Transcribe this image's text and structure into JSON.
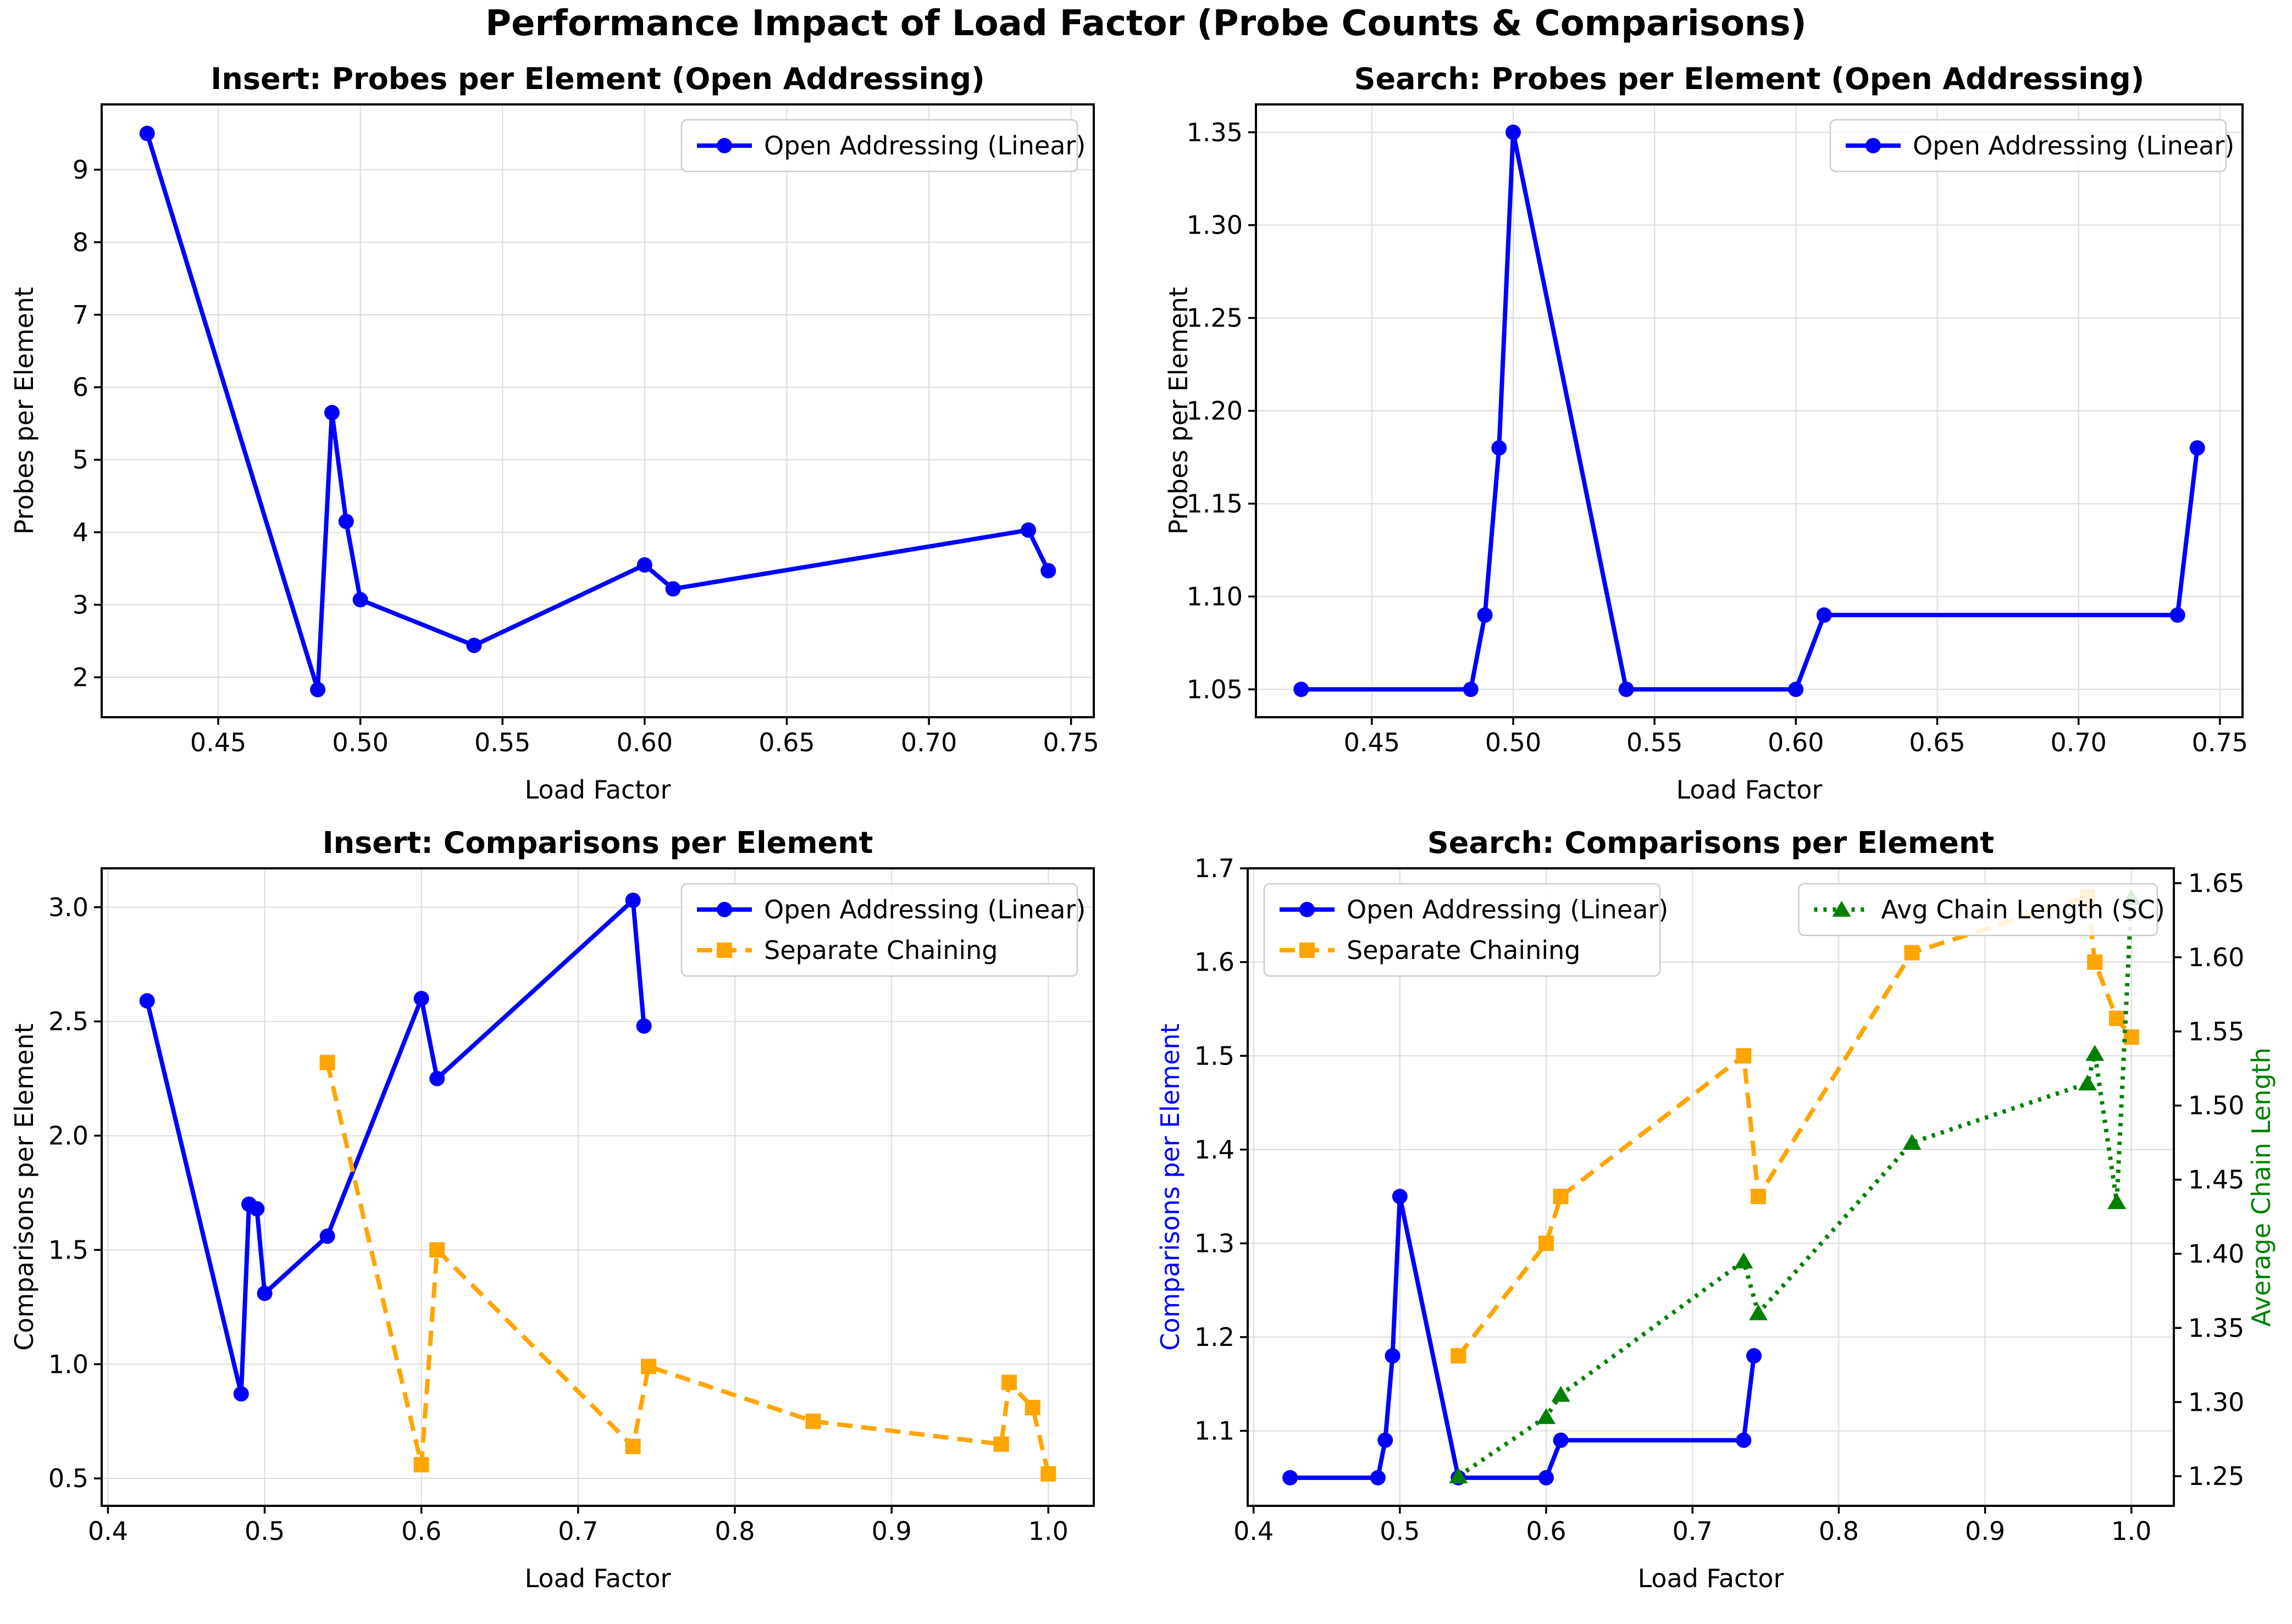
{
  "figure": {
    "title": "Performance Impact of Load Factor (Probe Counts & Comparisons)"
  },
  "colors": {
    "open_addressing": "#0000ff",
    "separate_chaining": "#ffa500",
    "avg_chain_length": "#008000",
    "grid": "#dcdcdc",
    "axis": "#000000",
    "legend_border": "#cccccc"
  },
  "chart_data": [
    {
      "type": "line",
      "title": "Insert: Probes per Element (Open Addressing)",
      "xlabel": "Load Factor",
      "ylabel": "Probes per Element",
      "ylabel_color": "#000000",
      "xlim": [
        0.409,
        0.758
      ],
      "ylim": [
        1.45,
        9.9
      ],
      "xticks": {
        "vals": [
          0.45,
          0.5,
          0.55,
          0.6,
          0.65,
          0.7,
          0.75
        ],
        "labels": [
          "0.45",
          "0.50",
          "0.55",
          "0.60",
          "0.65",
          "0.70",
          "0.75"
        ]
      },
      "yticks": {
        "vals": [
          2,
          3,
          4,
          5,
          6,
          7,
          8,
          9
        ],
        "labels": [
          "2",
          "3",
          "4",
          "5",
          "6",
          "7",
          "8",
          "9"
        ]
      },
      "grid": true,
      "series": [
        {
          "name": "Open Addressing (Linear)",
          "color": "#0000ff",
          "marker": "circle",
          "line": "solid",
          "axis": "y",
          "x": [
            0.425,
            0.485,
            0.49,
            0.495,
            0.5,
            0.54,
            0.6,
            0.61,
            0.735,
            0.742
          ],
          "y": [
            9.5,
            1.83,
            5.65,
            4.15,
            3.07,
            2.44,
            3.55,
            3.22,
            4.03,
            3.47
          ]
        }
      ],
      "legends": [
        {
          "loc": "upper right",
          "series": [
            0
          ]
        }
      ]
    },
    {
      "type": "line",
      "title": "Search: Probes per Element (Open Addressing)",
      "xlabel": "Load Factor",
      "ylabel": "Probes per Element",
      "ylabel_color": "#000000",
      "xlim": [
        0.409,
        0.758
      ],
      "ylim": [
        1.035,
        1.365
      ],
      "xticks": {
        "vals": [
          0.45,
          0.5,
          0.55,
          0.6,
          0.65,
          0.7,
          0.75
        ],
        "labels": [
          "0.45",
          "0.50",
          "0.55",
          "0.60",
          "0.65",
          "0.70",
          "0.75"
        ]
      },
      "yticks": {
        "vals": [
          1.05,
          1.1,
          1.15,
          1.2,
          1.25,
          1.3,
          1.35
        ],
        "labels": [
          "1.05",
          "1.10",
          "1.15",
          "1.20",
          "1.25",
          "1.30",
          "1.35"
        ]
      },
      "grid": true,
      "series": [
        {
          "name": "Open Addressing (Linear)",
          "color": "#0000ff",
          "marker": "circle",
          "line": "solid",
          "axis": "y",
          "x": [
            0.425,
            0.485,
            0.49,
            0.495,
            0.5,
            0.54,
            0.6,
            0.61,
            0.735,
            0.742
          ],
          "y": [
            1.05,
            1.05,
            1.09,
            1.18,
            1.35,
            1.05,
            1.05,
            1.09,
            1.09,
            1.18
          ]
        }
      ],
      "legends": [
        {
          "loc": "upper right",
          "series": [
            0
          ]
        }
      ]
    },
    {
      "type": "line",
      "title": "Insert: Comparisons per Element",
      "xlabel": "Load Factor",
      "ylabel": "Comparisons per Element",
      "ylabel_color": "#000000",
      "xlim": [
        0.396,
        1.029
      ],
      "ylim": [
        0.38,
        3.17
      ],
      "xticks": {
        "vals": [
          0.4,
          0.5,
          0.6,
          0.7,
          0.8,
          0.9,
          1.0
        ],
        "labels": [
          "0.4",
          "0.5",
          "0.6",
          "0.7",
          "0.8",
          "0.9",
          "1.0"
        ]
      },
      "yticks": {
        "vals": [
          0.5,
          1.0,
          1.5,
          2.0,
          2.5,
          3.0
        ],
        "labels": [
          "0.5",
          "1.0",
          "1.5",
          "2.0",
          "2.5",
          "3.0"
        ]
      },
      "grid": true,
      "series": [
        {
          "name": "Open Addressing (Linear)",
          "color": "#0000ff",
          "marker": "circle",
          "line": "solid",
          "axis": "y",
          "x": [
            0.425,
            0.485,
            0.49,
            0.495,
            0.5,
            0.54,
            0.6,
            0.61,
            0.735,
            0.742
          ],
          "y": [
            2.59,
            0.87,
            1.7,
            1.68,
            1.31,
            1.56,
            2.6,
            2.25,
            3.03,
            2.48
          ]
        },
        {
          "name": "Separate Chaining",
          "color": "#ffa500",
          "marker": "square",
          "line": "dashed",
          "axis": "y",
          "x": [
            0.54,
            0.6,
            0.61,
            0.735,
            0.745,
            0.85,
            0.97,
            0.975,
            0.99,
            1.0
          ],
          "y": [
            2.32,
            0.56,
            1.5,
            0.64,
            0.99,
            0.75,
            0.65,
            0.92,
            0.81,
            0.52
          ]
        }
      ],
      "legends": [
        {
          "loc": "upper right",
          "series": [
            0,
            1
          ]
        }
      ]
    },
    {
      "type": "line",
      "title": "Search: Comparisons per Element",
      "xlabel": "Load Factor",
      "ylabel": "Comparisons per Element",
      "ylabel_color": "#0000ff",
      "y2label": "Average Chain Length",
      "y2label_color": "#008000",
      "xlim": [
        0.396,
        1.029
      ],
      "ylim": [
        1.02,
        1.7
      ],
      "y2lim": [
        1.23,
        1.66
      ],
      "xticks": {
        "vals": [
          0.4,
          0.5,
          0.6,
          0.7,
          0.8,
          0.9,
          1.0
        ],
        "labels": [
          "0.4",
          "0.5",
          "0.6",
          "0.7",
          "0.8",
          "0.9",
          "1.0"
        ]
      },
      "yticks": {
        "vals": [
          1.1,
          1.2,
          1.3,
          1.4,
          1.5,
          1.6,
          1.7
        ],
        "labels": [
          "1.1",
          "1.2",
          "1.3",
          "1.4",
          "1.5",
          "1.6",
          "1.7"
        ]
      },
      "y2ticks": {
        "vals": [
          1.25,
          1.3,
          1.35,
          1.4,
          1.45,
          1.5,
          1.55,
          1.6,
          1.65
        ],
        "labels": [
          "1.25",
          "1.30",
          "1.35",
          "1.40",
          "1.45",
          "1.50",
          "1.55",
          "1.60",
          "1.65"
        ]
      },
      "grid": true,
      "series": [
        {
          "name": "Open Addressing (Linear)",
          "color": "#0000ff",
          "marker": "circle",
          "line": "solid",
          "axis": "y",
          "x": [
            0.425,
            0.485,
            0.49,
            0.495,
            0.5,
            0.54,
            0.6,
            0.61,
            0.735,
            0.742
          ],
          "y": [
            1.05,
            1.05,
            1.09,
            1.18,
            1.35,
            1.05,
            1.05,
            1.09,
            1.09,
            1.18
          ]
        },
        {
          "name": "Separate Chaining",
          "color": "#ffa500",
          "marker": "square",
          "line": "dashed",
          "axis": "y",
          "x": [
            0.54,
            0.6,
            0.61,
            0.735,
            0.745,
            0.85,
            0.97,
            0.975,
            0.99,
            1.0
          ],
          "y": [
            1.18,
            1.3,
            1.35,
            1.5,
            1.35,
            1.61,
            1.67,
            1.6,
            1.54,
            1.52
          ]
        },
        {
          "name": "Avg Chain Length (SC)",
          "color": "#008000",
          "marker": "triangle",
          "line": "dotted",
          "axis": "y2",
          "x": [
            0.54,
            0.6,
            0.61,
            0.735,
            0.745,
            0.85,
            0.97,
            0.975,
            0.99,
            1.0
          ],
          "y": [
            1.25,
            1.29,
            1.305,
            1.395,
            1.36,
            1.475,
            1.515,
            1.535,
            1.435,
            1.64
          ]
        }
      ],
      "legends": [
        {
          "loc": "upper left",
          "series": [
            0,
            1
          ]
        },
        {
          "loc": "upper right",
          "series": [
            2
          ]
        }
      ]
    }
  ]
}
